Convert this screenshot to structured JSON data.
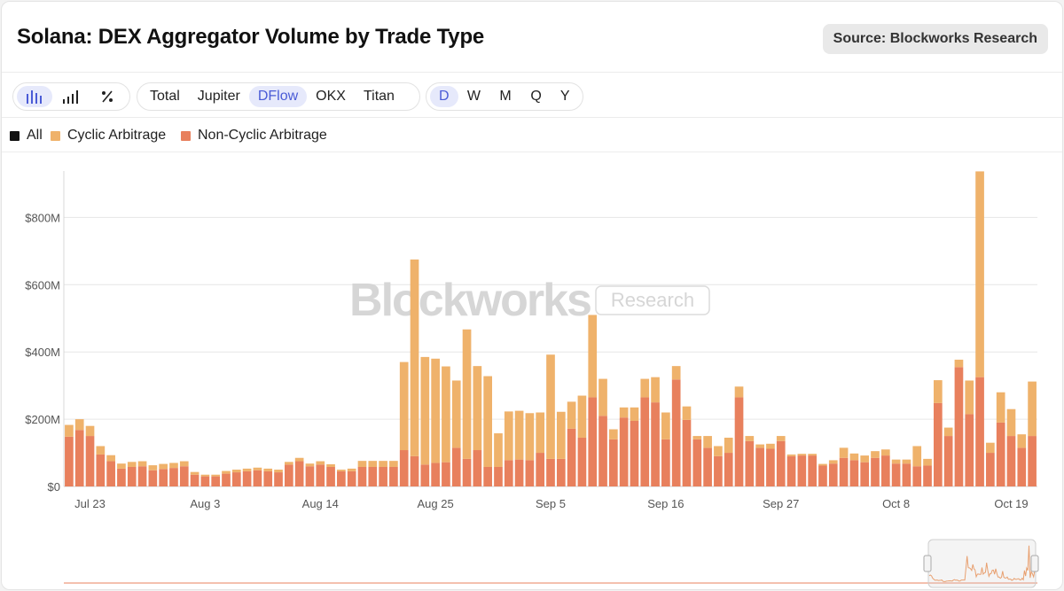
{
  "title": "Solana: DEX Aggregator Volume by Trade Type",
  "source": "Source: Blockworks Research",
  "toolbar": {
    "chart_modes": [
      {
        "icon": "bar-chart-icon",
        "active": true
      },
      {
        "icon": "stepped-bars-icon",
        "active": false
      },
      {
        "icon": "percent-icon",
        "active": false
      }
    ],
    "aggregators": [
      {
        "label": "Total",
        "active": false
      },
      {
        "label": "Jupiter",
        "active": false
      },
      {
        "label": "DFlow",
        "active": true
      },
      {
        "label": "OKX",
        "active": false
      },
      {
        "label": "Titan",
        "active": false
      }
    ],
    "timeframes": [
      {
        "label": "D",
        "active": true
      },
      {
        "label": "W",
        "active": false
      },
      {
        "label": "M",
        "active": false
      },
      {
        "label": "Q",
        "active": false
      },
      {
        "label": "Y",
        "active": false
      }
    ]
  },
  "legend": [
    {
      "label": "All",
      "color": "#111111"
    },
    {
      "label": "Cyclic Arbitrage",
      "color": "#efb26b"
    },
    {
      "label": "Non-Cyclic Arbitrage",
      "color": "#e8805d"
    }
  ],
  "watermark": {
    "brand": "Blockworks",
    "tag": "Research"
  },
  "colors": {
    "cyclic": "#efb26b",
    "noncyclic": "#e8805d",
    "grid": "#e6e6e6",
    "axis_text": "#555555"
  },
  "chart_data": {
    "type": "bar",
    "stacked": true,
    "title": "Solana: DEX Aggregator Volume by Trade Type",
    "xlabel": "",
    "ylabel": "",
    "ylim": [
      0,
      940
    ],
    "y_unit": "$M",
    "y_ticks": [
      {
        "value": 0,
        "label": "$0"
      },
      {
        "value": 200,
        "label": "$200M"
      },
      {
        "value": 400,
        "label": "$400M"
      },
      {
        "value": 600,
        "label": "$600M"
      },
      {
        "value": 800,
        "label": "$800M"
      }
    ],
    "x_ticks": [
      {
        "index": 2,
        "label": "Jul 23"
      },
      {
        "index": 13,
        "label": "Aug 3"
      },
      {
        "index": 24,
        "label": "Aug 14"
      },
      {
        "index": 35,
        "label": "Aug 25"
      },
      {
        "index": 46,
        "label": "Sep 5"
      },
      {
        "index": 57,
        "label": "Sep 16"
      },
      {
        "index": 68,
        "label": "Sep 27"
      },
      {
        "index": 79,
        "label": "Oct 8"
      },
      {
        "index": 90,
        "label": "Oct 19"
      }
    ],
    "series": [
      {
        "name": "Non-Cyclic Arbitrage",
        "values": [
          148,
          168,
          150,
          95,
          75,
          53,
          58,
          60,
          48,
          52,
          55,
          60,
          35,
          30,
          30,
          38,
          42,
          45,
          48,
          45,
          42,
          65,
          75,
          60,
          65,
          58,
          45,
          45,
          58,
          58,
          58,
          58,
          108,
          90,
          65,
          70,
          72,
          115,
          82,
          108,
          58,
          58,
          78,
          80,
          78,
          100,
          82,
          82,
          172,
          145,
          265,
          210,
          140,
          205,
          195,
          265,
          250,
          140,
          318,
          198,
          140,
          115,
          90,
          100,
          265,
          135,
          115,
          112,
          135,
          90,
          92,
          92,
          62,
          68,
          85,
          78,
          72,
          85,
          92,
          68,
          68,
          60,
          62,
          248,
          150,
          355,
          215,
          325,
          100,
          190,
          150,
          115,
          150
        ],
        "note": ""
      },
      {
        "name": "Cyclic Arbitrage",
        "values": [
          35,
          32,
          30,
          25,
          18,
          15,
          15,
          15,
          15,
          15,
          15,
          15,
          8,
          5,
          5,
          8,
          8,
          8,
          8,
          8,
          8,
          8,
          10,
          8,
          10,
          8,
          5,
          8,
          18,
          18,
          18,
          18,
          262,
          585,
          320,
          310,
          285,
          200,
          385,
          250,
          270,
          100,
          145,
          145,
          140,
          120,
          310,
          140,
          80,
          125,
          245,
          110,
          30,
          30,
          40,
          55,
          75,
          80,
          40,
          40,
          10,
          35,
          30,
          45,
          32,
          15,
          10,
          15,
          15,
          5,
          5,
          5,
          5,
          10,
          30,
          20,
          20,
          20,
          18,
          12,
          12,
          60,
          20,
          68,
          25,
          22,
          100,
          612,
          30,
          90,
          80,
          40,
          162
        ]
      }
    ]
  }
}
